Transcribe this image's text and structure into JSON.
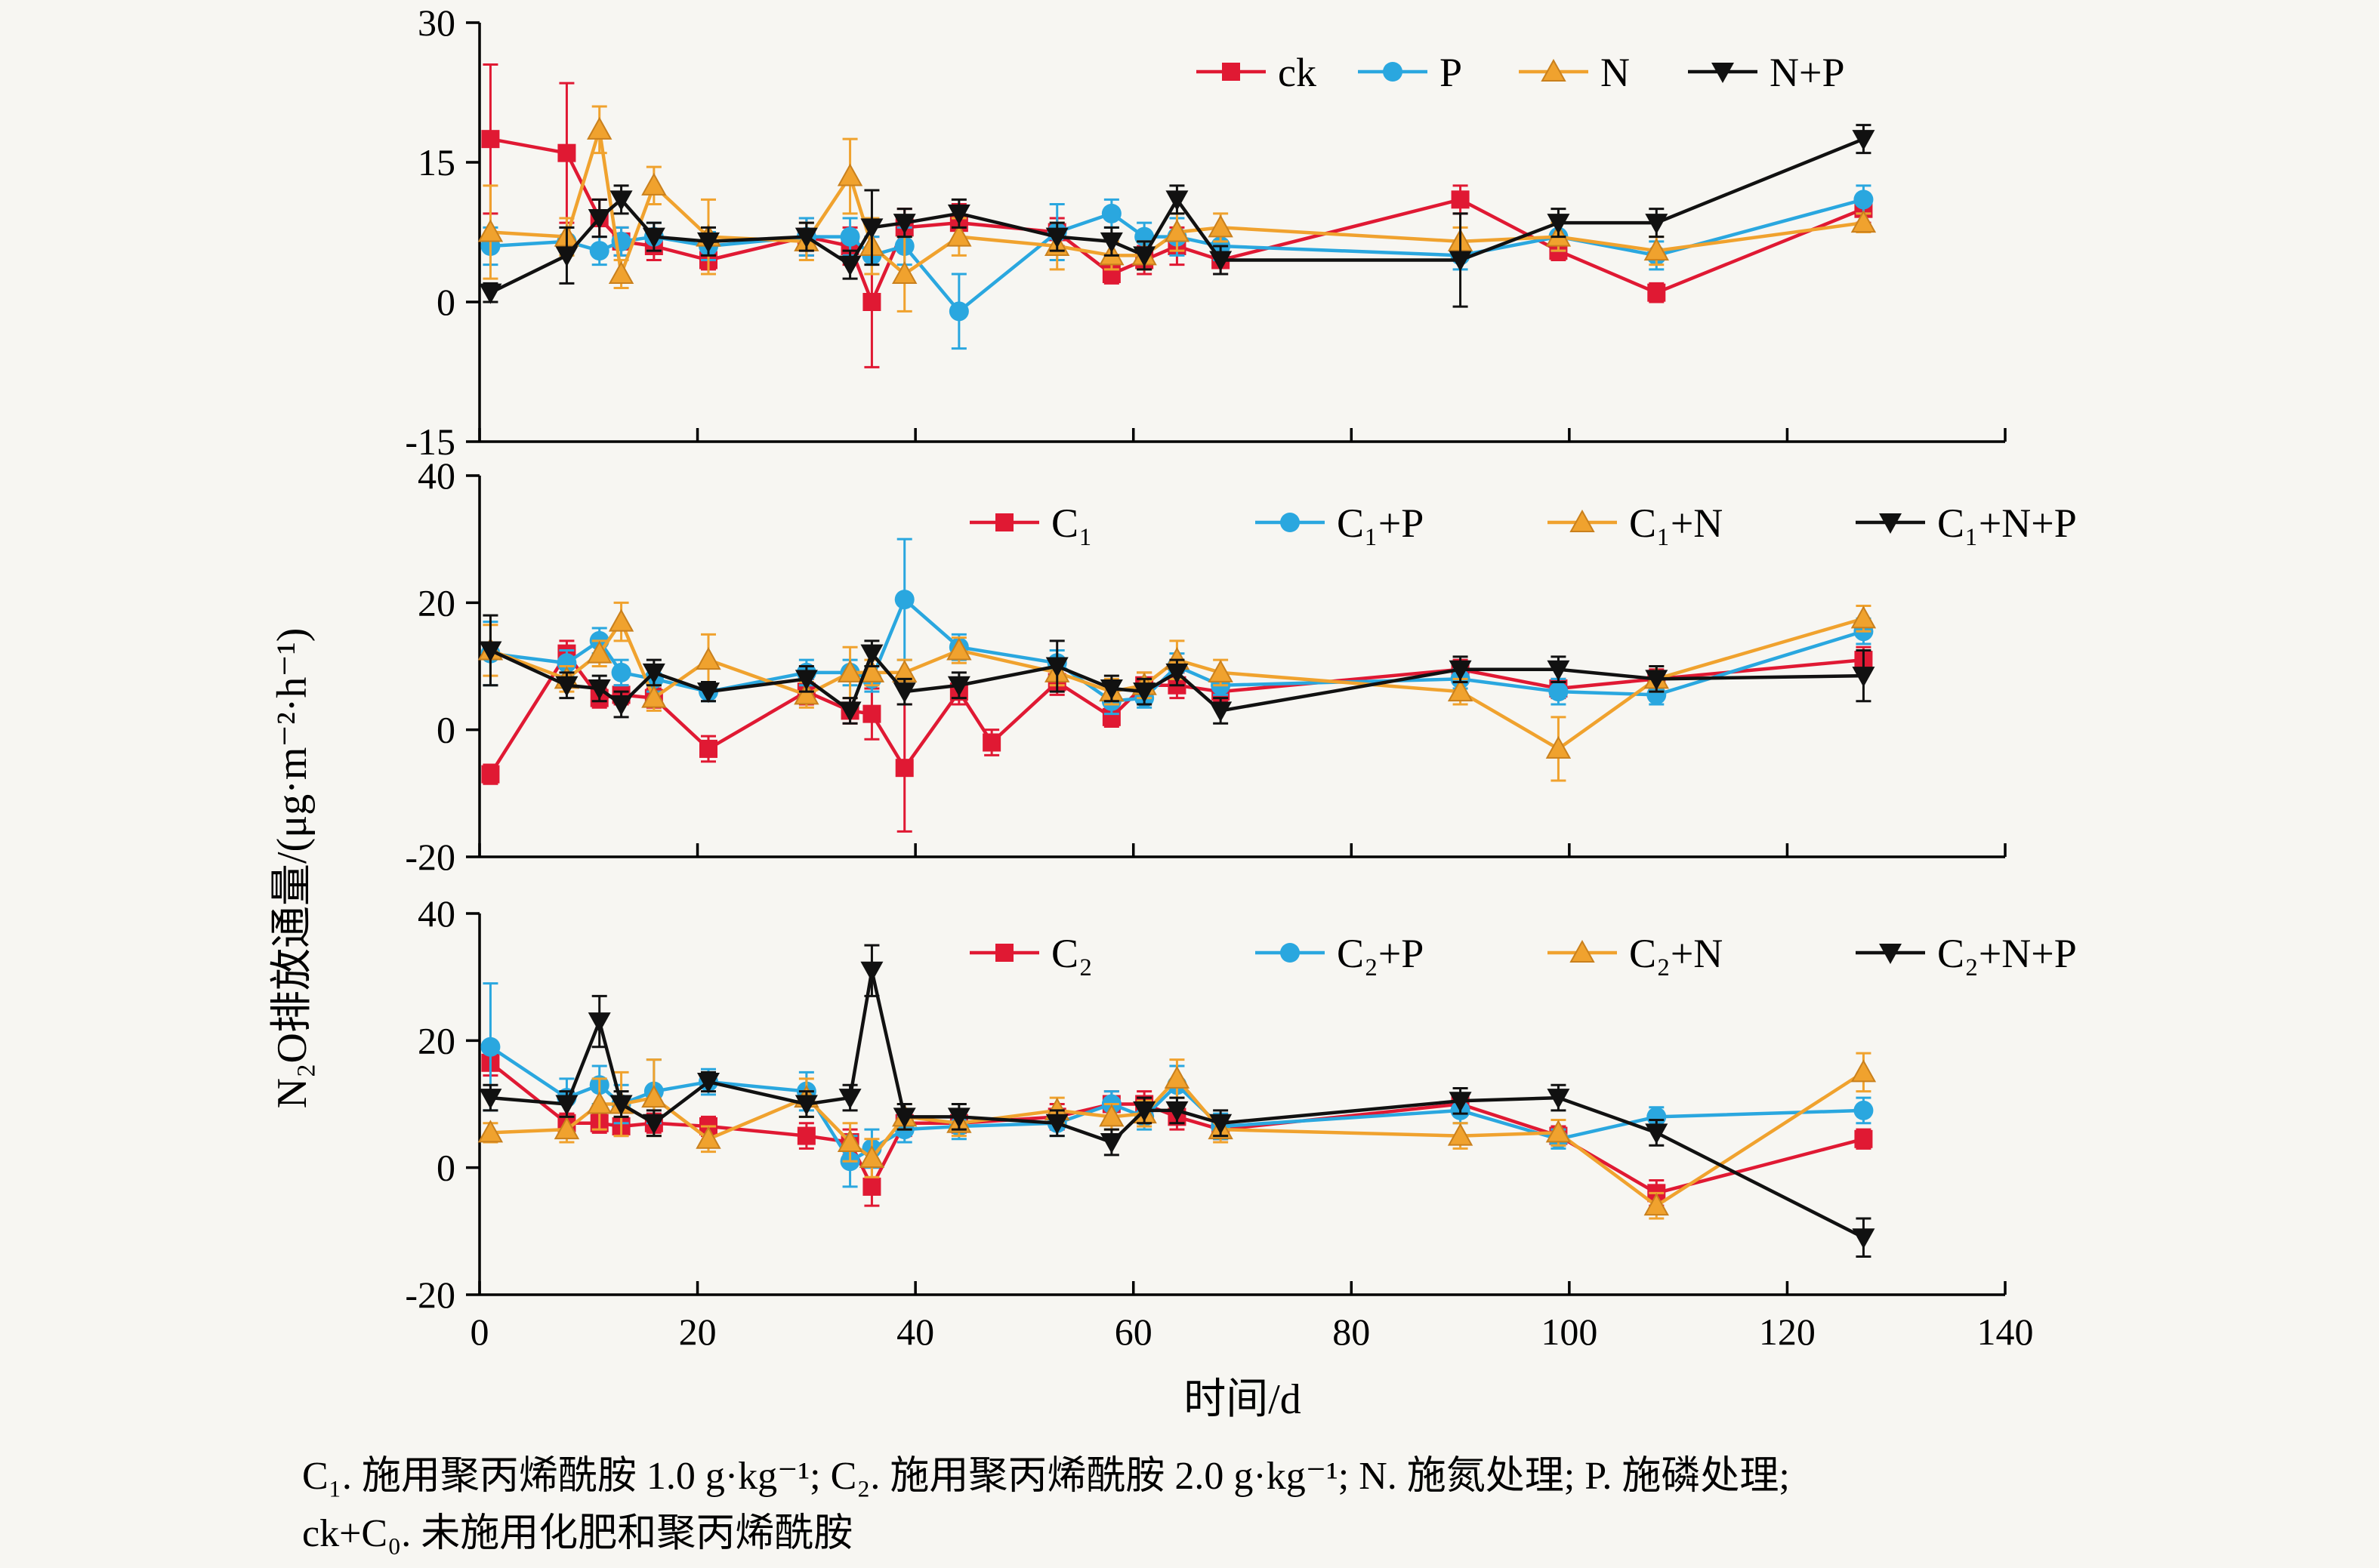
{
  "figure": {
    "background": "#f7f6f2",
    "y_axis_title": "N₂O排放通量/(μg·m⁻²·h⁻¹)",
    "x_axis_title": "时间/d",
    "caption": {
      "line1": "C₁. 施用聚丙烯酰胺 1.0 g·kg⁻¹; C₂. 施用聚丙烯酰胺 2.0 g·kg⁻¹; N. 施氮处理; P. 施磷处理;",
      "line2": "ck+C₀. 未施用化肥和聚丙烯酰胺"
    },
    "colors": {
      "red": "#e01933",
      "blue": "#2aa7df",
      "orange": "#f0a22e",
      "orange_edge": "#c9801d",
      "black": "#111111",
      "axis": "#000000"
    }
  },
  "chart_data": [
    {
      "type": "line",
      "panel": "top",
      "ylim": [
        -15,
        30
      ],
      "yticks": [
        30,
        15,
        0,
        -15
      ],
      "xlim": [
        0,
        140
      ],
      "xticks": [
        0,
        20,
        40,
        60,
        80,
        100,
        120,
        140
      ],
      "show_x_tick_labels": false,
      "legend_position": "top-right-inside",
      "x": [
        1,
        8,
        11,
        13,
        16,
        21,
        30,
        34,
        36,
        39,
        44,
        53,
        58,
        61,
        64,
        68,
        90,
        99,
        108,
        127
      ],
      "series": [
        {
          "name": "ck",
          "color": "#e01933",
          "marker": "square",
          "values": [
            17.5,
            16,
            9,
            6.5,
            6,
            4.5,
            7,
            6,
            0,
            8,
            8.5,
            7.5,
            3,
            4.5,
            6,
            4.5,
            11,
            5.5,
            1,
            10
          ],
          "errors": [
            8,
            7.5,
            2,
            1.5,
            1.5,
            1,
            2,
            2,
            7,
            2,
            2,
            1.5,
            1,
            1.5,
            2,
            1.5,
            1.5,
            1,
            1,
            1.5
          ]
        },
        {
          "name": "P",
          "color": "#2aa7df",
          "marker": "circle",
          "values": [
            6,
            6.5,
            5.5,
            6.5,
            7,
            6,
            7,
            7,
            5,
            6,
            -1,
            7.5,
            9.5,
            7,
            7,
            6,
            5,
            7,
            5,
            11
          ],
          "errors": [
            2,
            1.5,
            1.5,
            1.5,
            1.5,
            1.5,
            2,
            2,
            2,
            2,
            4,
            3,
            1.5,
            1.5,
            2,
            1.5,
            1.5,
            1.5,
            1.5,
            1.5
          ]
        },
        {
          "name": "N",
          "color": "#f0a22e",
          "marker": "triangle-up",
          "edge": "#c9801d",
          "values": [
            7.5,
            7,
            18.5,
            3,
            12.5,
            7,
            6.5,
            13.5,
            6,
            3,
            7,
            6,
            5,
            5,
            7.5,
            8,
            6.5,
            7,
            5.5,
            8.5
          ],
          "errors": [
            5,
            2,
            2.5,
            1.5,
            2,
            4,
            2,
            4,
            3,
            4,
            2,
            2.5,
            1.5,
            1.5,
            2,
            1.5,
            1.5,
            1.5,
            1.5,
            1
          ]
        },
        {
          "name": "N+P",
          "color": "#111111",
          "marker": "triangle-down",
          "values": [
            1,
            5,
            9,
            11,
            7,
            6.5,
            7,
            4,
            8,
            8.5,
            9.5,
            7,
            6.5,
            5,
            11,
            4.5,
            4.5,
            8.5,
            8.5,
            17.5
          ],
          "errors": [
            1,
            3,
            2,
            1.5,
            1.5,
            1.5,
            1.5,
            1.5,
            4,
            1.5,
            1.5,
            1.5,
            1.5,
            1.5,
            1.5,
            1.5,
            5,
            1.5,
            1.5,
            1.5
          ]
        }
      ]
    },
    {
      "type": "line",
      "panel": "middle",
      "ylim": [
        -20,
        40
      ],
      "yticks": [
        40,
        20,
        0,
        -20
      ],
      "xlim": [
        0,
        140
      ],
      "xticks": [
        0,
        20,
        40,
        60,
        80,
        100,
        120,
        140
      ],
      "show_x_tick_labels": false,
      "legend_position": "top-center-inside",
      "x": [
        1,
        8,
        11,
        13,
        16,
        21,
        30,
        34,
        36,
        39,
        44,
        53,
        58,
        61,
        64,
        68,
        90,
        99,
        108,
        127
      ],
      "series": [
        {
          "name": "C₁",
          "color": "#e01933",
          "marker": "square",
          "x": [
            1,
            8,
            11,
            13,
            16,
            21,
            30,
            34,
            36,
            39,
            44,
            47,
            53,
            58,
            61,
            64,
            68,
            90,
            99,
            108,
            127
          ],
          "values": [
            -7,
            12,
            5,
            5.5,
            5,
            -3,
            6,
            3,
            2.5,
            -6,
            6,
            -2,
            7.5,
            2,
            7,
            7,
            6,
            9.5,
            6.5,
            8,
            11
          ],
          "errors": [
            1.5,
            2,
            1.5,
            1.5,
            1.5,
            2,
            2,
            2,
            4,
            10,
            2,
            2,
            2,
            1.5,
            2,
            2,
            1.5,
            1.5,
            1.5,
            1.5,
            2
          ]
        },
        {
          "name": "C₁+P",
          "color": "#2aa7df",
          "marker": "circle",
          "values": [
            12,
            10.5,
            14,
            9,
            8,
            6,
            9,
            9,
            8,
            20.5,
            13,
            10.5,
            4.5,
            5,
            10,
            7,
            8,
            6,
            5.5,
            15.5
          ],
          "errors": [
            5,
            2,
            2,
            2,
            2,
            1.5,
            2,
            2,
            2,
            9.5,
            2,
            2,
            2,
            1.5,
            2,
            1.5,
            1.5,
            2,
            1.5,
            2
          ]
        },
        {
          "name": "C₁+N",
          "color": "#f0a22e",
          "marker": "triangle-up",
          "edge": "#c9801d",
          "values": [
            12.5,
            8,
            12,
            17,
            5,
            11,
            5.5,
            9,
            9,
            9,
            12.5,
            9,
            6,
            7,
            11,
            9,
            6,
            -3,
            8,
            17.5
          ],
          "errors": [
            4,
            2,
            2,
            3,
            2,
            4,
            2,
            4,
            2,
            2,
            2,
            2,
            2,
            2,
            3,
            2,
            2,
            5,
            2,
            2
          ]
        },
        {
          "name": "C₁+N+P",
          "color": "#111111",
          "marker": "triangle-down",
          "values": [
            12.5,
            7,
            6.5,
            4,
            9,
            6,
            8,
            3,
            12,
            6,
            7,
            10,
            6.5,
            6,
            9,
            3,
            9.5,
            9.5,
            8,
            8.5
          ],
          "errors": [
            5.5,
            2,
            2,
            2,
            2,
            1.5,
            2,
            2,
            2,
            2,
            2,
            4,
            2,
            2,
            2,
            2,
            2,
            2,
            2,
            4
          ]
        }
      ]
    },
    {
      "type": "line",
      "panel": "bottom",
      "ylim": [
        -20,
        40
      ],
      "yticks": [
        40,
        20,
        0,
        -20
      ],
      "xlim": [
        0,
        140
      ],
      "xticks": [
        0,
        20,
        40,
        60,
        80,
        100,
        120,
        140
      ],
      "show_x_tick_labels": true,
      "legend_position": "top-center-inside",
      "x": [
        1,
        8,
        11,
        13,
        16,
        21,
        30,
        34,
        36,
        39,
        44,
        53,
        58,
        61,
        64,
        68,
        90,
        99,
        108,
        127
      ],
      "series": [
        {
          "name": "C₂",
          "color": "#e01933",
          "marker": "square",
          "values": [
            16.5,
            7,
            7,
            6.5,
            7,
            6.5,
            5,
            4,
            -3,
            7,
            7,
            8,
            10,
            10,
            8,
            6,
            10,
            5,
            -4,
            4.5
          ],
          "errors": [
            2,
            1.5,
            1.5,
            1.5,
            1.5,
            1.5,
            2,
            2,
            3,
            2,
            1.5,
            2,
            2,
            2,
            2,
            1.5,
            1.5,
            1.5,
            2,
            1.5
          ]
        },
        {
          "name": "C₂+P",
          "color": "#2aa7df",
          "marker": "circle",
          "values": [
            19,
            11,
            13,
            10,
            12,
            13.5,
            12,
            1,
            3,
            6,
            6.5,
            7,
            10,
            8,
            13,
            6.5,
            9,
            4.5,
            8,
            9
          ],
          "errors": [
            10,
            3,
            3,
            3,
            5,
            2,
            3,
            4,
            3,
            2,
            2,
            2,
            2,
            2,
            3,
            2,
            2,
            1.5,
            1.5,
            2
          ]
        },
        {
          "name": "C₂+N",
          "color": "#f0a22e",
          "marker": "triangle-up",
          "edge": "#c9801d",
          "values": [
            5.5,
            6,
            10,
            10,
            11,
            4.5,
            11,
            4,
            1.5,
            8,
            7,
            9,
            8,
            8.5,
            14,
            6,
            5,
            5.5,
            -6,
            15
          ],
          "errors": [
            1.5,
            2,
            4,
            5,
            6,
            2,
            3,
            3,
            3,
            2,
            2,
            2,
            2,
            2,
            3,
            2,
            2,
            2,
            2,
            3
          ]
        },
        {
          "name": "C₂+N+P",
          "color": "#111111",
          "marker": "triangle-down",
          "values": [
            11,
            10,
            23,
            10,
            7,
            13.5,
            10,
            11,
            31,
            8,
            8,
            7,
            4,
            9,
            9,
            7,
            10.5,
            11,
            5.5,
            -11
          ],
          "errors": [
            2,
            2,
            4,
            2,
            2,
            1.5,
            2,
            2,
            4,
            2,
            2,
            2,
            2,
            2,
            2,
            2,
            2,
            2,
            2,
            3
          ]
        }
      ]
    }
  ]
}
